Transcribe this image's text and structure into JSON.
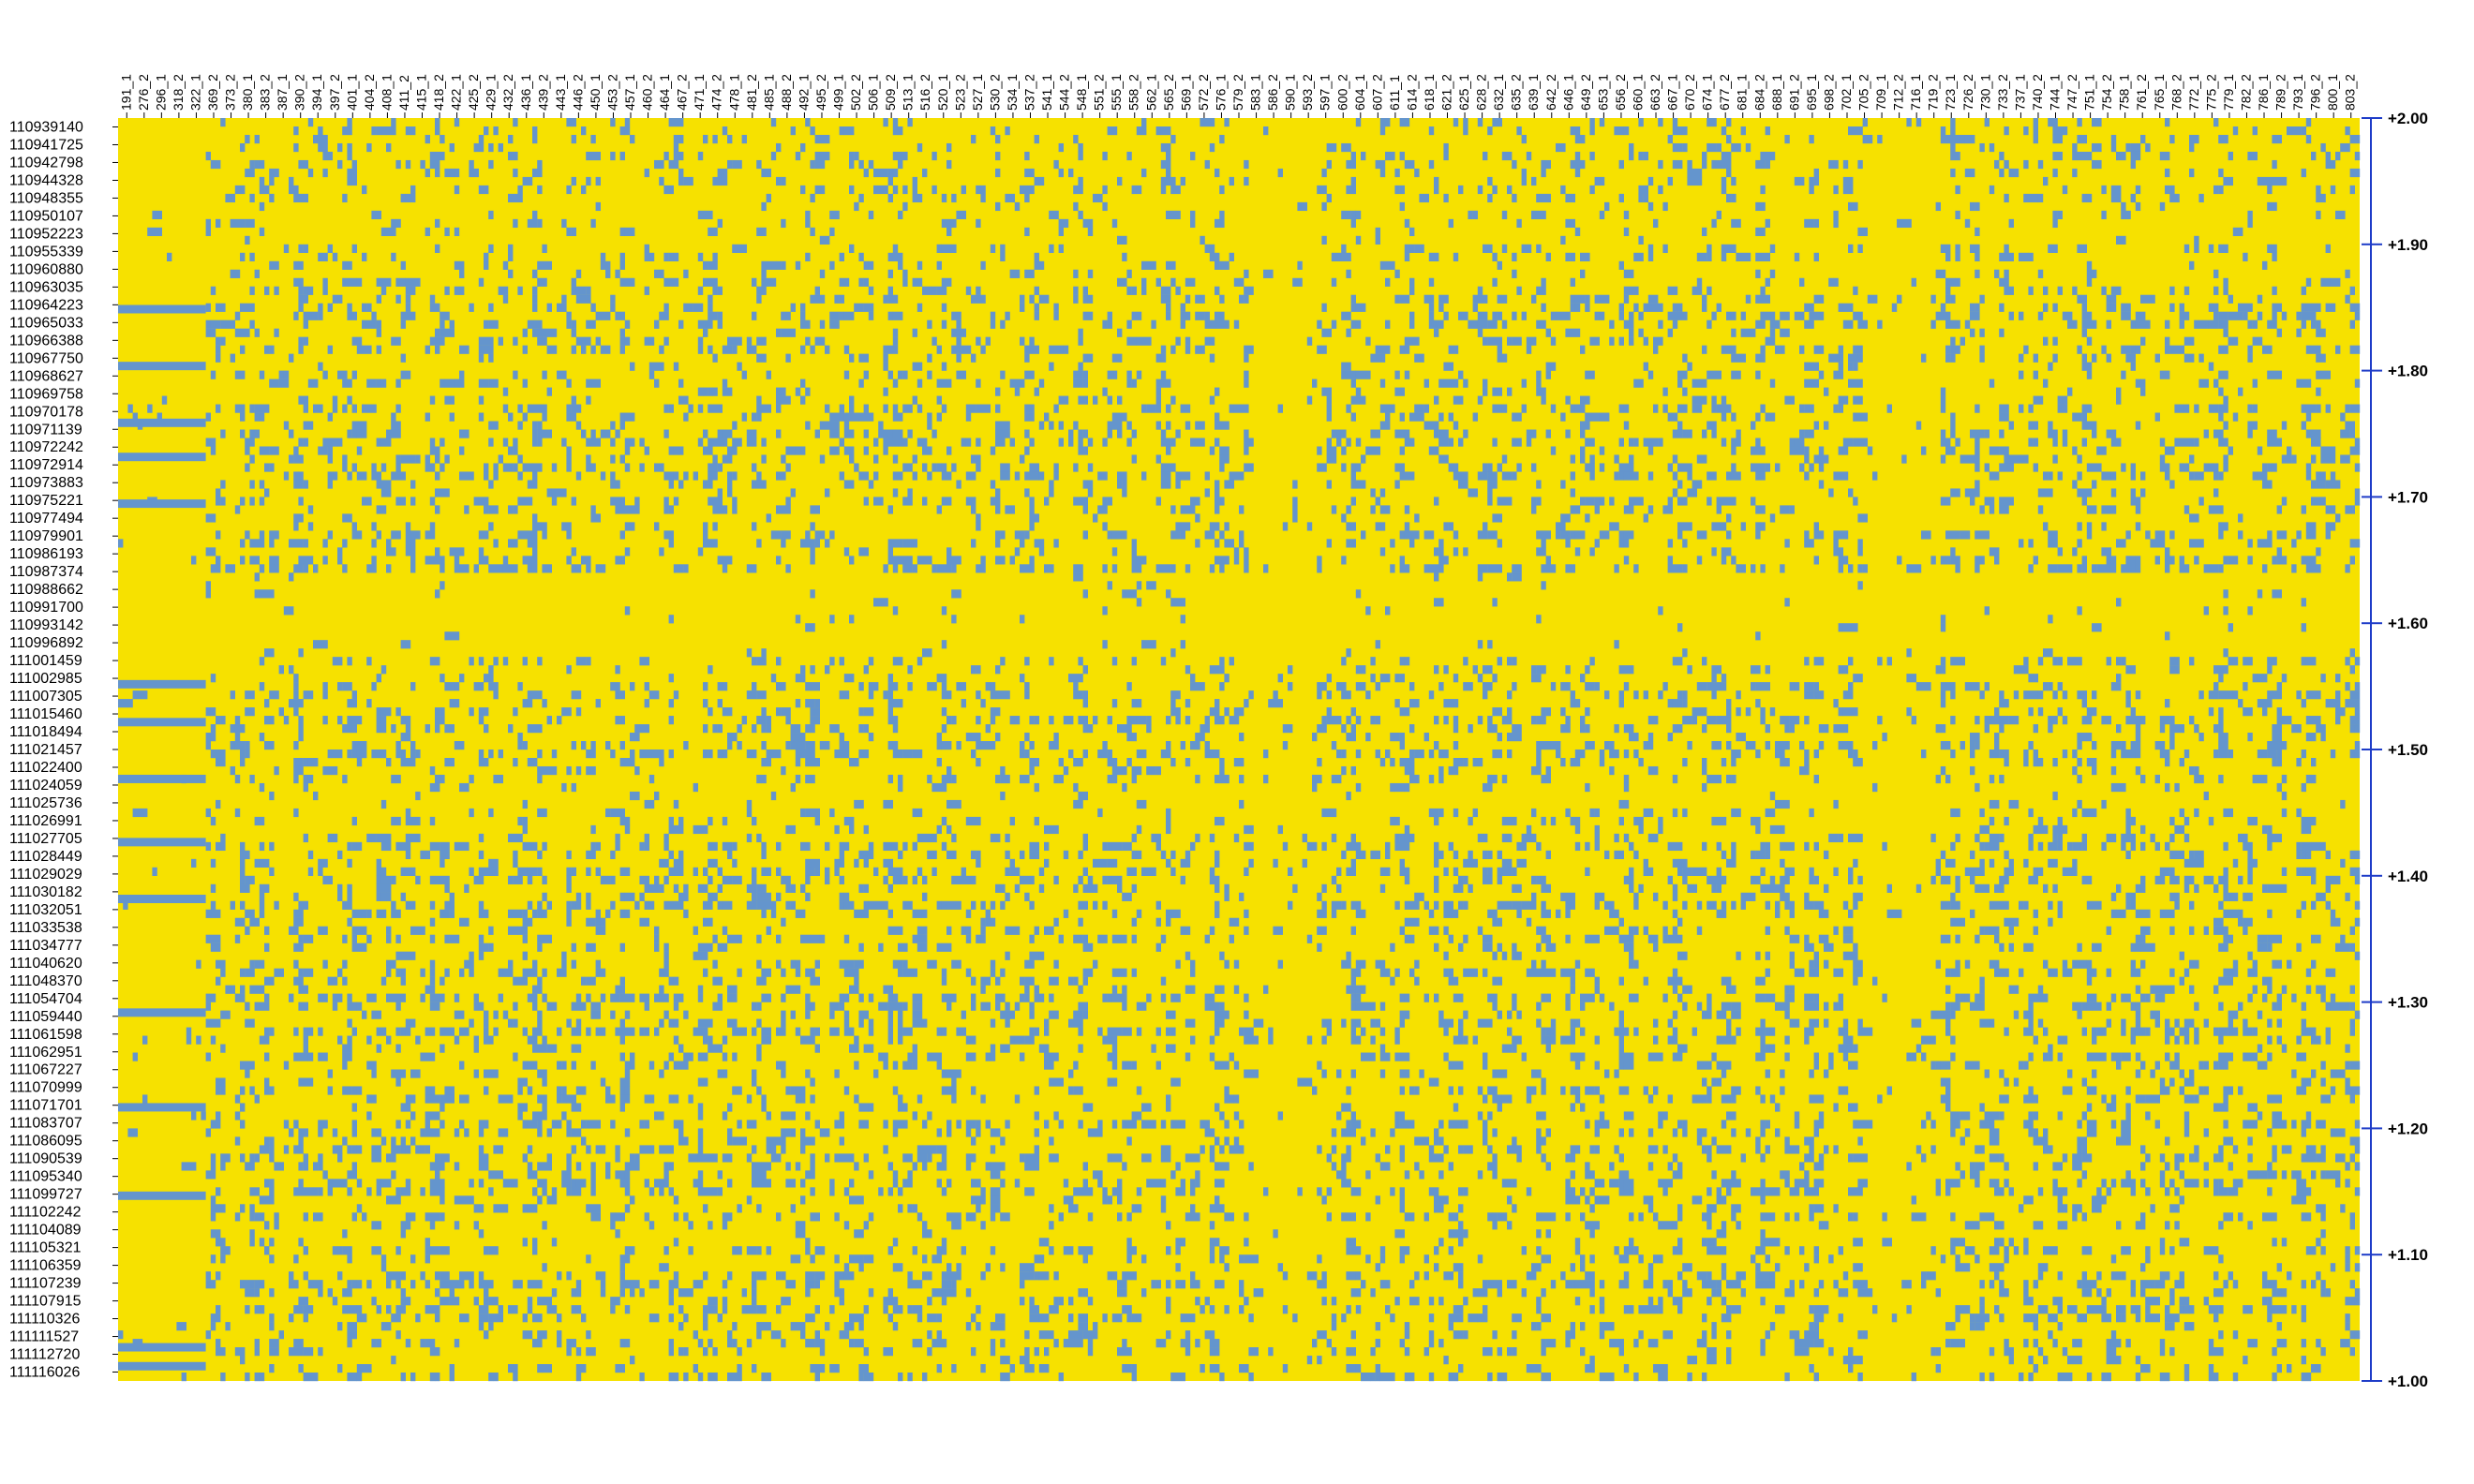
{
  "chart_data": {
    "type": "heatmap",
    "title": "",
    "xlabel": "",
    "ylabel": "",
    "columns": [
      "191_1",
      "276_2",
      "296_1",
      "318_2",
      "322_1",
      "369_2",
      "373_2",
      "380_1",
      "383_2",
      "387_1",
      "390_2",
      "394_1",
      "397_2",
      "401_1",
      "404_2",
      "408_1",
      "411_2",
      "415_1",
      "418_2",
      "422_1",
      "425_2",
      "429_1",
      "432_2",
      "436_1",
      "439_2",
      "443_1",
      "446_2",
      "450_1",
      "453_2",
      "457_1",
      "460_2",
      "464_1",
      "467_2",
      "471_1",
      "474_2",
      "478_1",
      "481_2",
      "485_1",
      "488_2",
      "492_1",
      "495_2",
      "499_1",
      "502_2",
      "506_1",
      "509_2",
      "513_1",
      "516_2",
      "520_1",
      "523_2",
      "527_1",
      "530_2",
      "534_1",
      "537_2",
      "541_1",
      "544_2",
      "548_1",
      "551_2",
      "555_1",
      "558_2",
      "562_1",
      "565_2",
      "569_1",
      "572_2",
      "576_1",
      "579_2",
      "583_1",
      "586_2",
      "590_1",
      "593_2",
      "597_1",
      "600_2",
      "604_1",
      "607_2",
      "611_1",
      "614_2",
      "618_1",
      "621_2",
      "625_1",
      "628_2",
      "632_1",
      "635_2",
      "639_1",
      "642_2",
      "646_1",
      "649_2",
      "653_1",
      "656_2",
      "660_1",
      "663_2",
      "667_1",
      "670_2",
      "674_1",
      "677_2",
      "681_1",
      "684_2",
      "688_1",
      "691_2",
      "695_1",
      "698_2",
      "702_1",
      "705_2",
      "709_1",
      "712_2",
      "716_1",
      "719_2",
      "723_1",
      "726_2",
      "730_1",
      "733_2",
      "737_1",
      "740_2",
      "744_1",
      "747_2",
      "751_1",
      "754_2",
      "758_1",
      "761_2",
      "765_1",
      "768_2",
      "772_1",
      "775_2",
      "779_1",
      "782_2",
      "786_1",
      "789_2",
      "793_1",
      "796_2",
      "800_1",
      "803_2"
    ],
    "rows": [
      "110939140",
      "110941725",
      "110942798",
      "110944328",
      "110948355",
      "110950107",
      "110952223",
      "110955339",
      "110960880",
      "110963035",
      "110964223",
      "110965033",
      "110966388",
      "110967750",
      "110968627",
      "110969758",
      "110970178",
      "110971139",
      "110972242",
      "110972914",
      "110973883",
      "110975221",
      "110977494",
      "110979901",
      "110986193",
      "110987374",
      "110988662",
      "110991700",
      "110993142",
      "110996892",
      "111001459",
      "111002985",
      "111007305",
      "111015460",
      "111018494",
      "111021457",
      "111022400",
      "111024059",
      "111025736",
      "111026991",
      "111027705",
      "111028449",
      "111029029",
      "111030182",
      "111032051",
      "111033538",
      "111034777",
      "111040620",
      "111048370",
      "111054704",
      "111059440",
      "111061598",
      "111062951",
      "111067227",
      "111070999",
      "111071701",
      "111083707",
      "111086095",
      "111090539",
      "111095340",
      "111099727",
      "111102242",
      "111104089",
      "111105321",
      "111106359",
      "111107239",
      "111107915",
      "111110326",
      "111111527",
      "111112720",
      "111116026"
    ],
    "value_levels": [
      1.0,
      2.0
    ],
    "value_colors": {
      "1.00": "#6495cd",
      "2.00": "#f6e100"
    },
    "dominant_value": 2.0,
    "colorbar": {
      "ticks": [
        "+2.00",
        "+1.90",
        "+1.80",
        "+1.70",
        "+1.60",
        "+1.50",
        "+1.40",
        "+1.30",
        "+1.20",
        "+1.10",
        "+1.00"
      ],
      "range": [
        1.0,
        2.0
      ],
      "position": "right"
    },
    "colors": {
      "high": "#f6e100",
      "low": "#6495cd",
      "axis": "#1e3cc8",
      "text": "#000000"
    }
  }
}
